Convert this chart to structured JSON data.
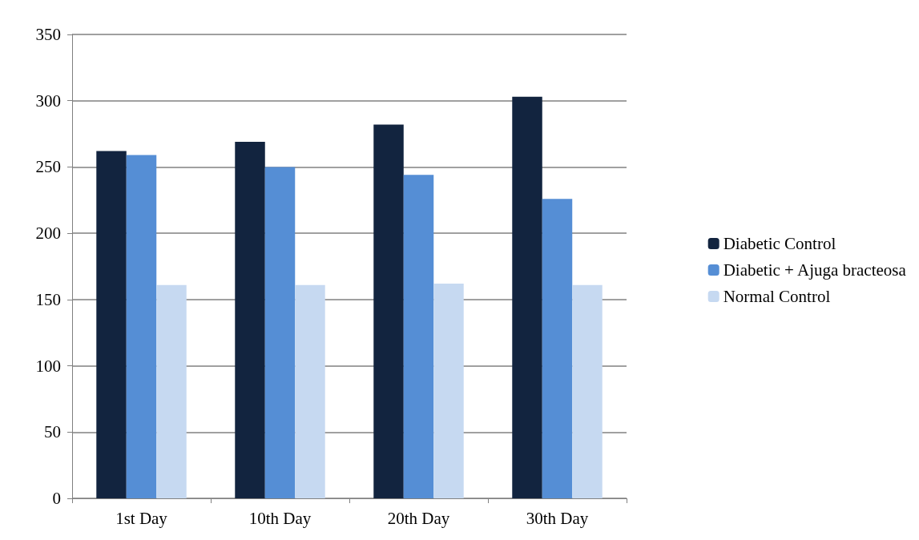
{
  "chart_data": {
    "type": "bar",
    "categories": [
      "1st Day",
      "10th Day",
      "20th Day",
      "30th Day"
    ],
    "series": [
      {
        "name": "Diabetic Control",
        "color": "#12243f",
        "values": [
          262,
          269,
          282,
          303
        ]
      },
      {
        "name": "Diabetic + Ajuga bracteosa",
        "color": "#558ed5",
        "values": [
          259,
          250,
          244,
          226
        ]
      },
      {
        "name": "Normal Control",
        "color": "#c6d9f1",
        "values": [
          161,
          161,
          162,
          161
        ]
      }
    ],
    "ylim": [
      0,
      350
    ],
    "yticks": [
      0,
      50,
      100,
      150,
      200,
      250,
      300,
      350
    ],
    "grid": "y",
    "legend": "right"
  }
}
